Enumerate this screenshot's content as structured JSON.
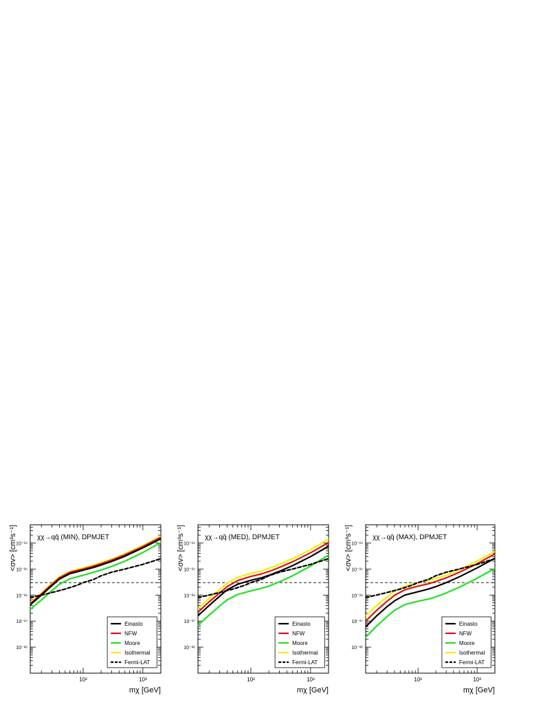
{
  "chart_data": [
    {
      "type": "line",
      "title": "χχ→qq̄ (MIN), DPMJET",
      "xlabel": "mχ [GeV]",
      "ylabel": "<σv> [cm³s⁻¹]",
      "x_scale": "log",
      "y_scale": "log",
      "xlim": [
        13,
        2000
      ],
      "ylim": [
        1e-29,
        5e-24
      ],
      "x_ticks": [
        {
          "value": 100,
          "label": "10²"
        },
        {
          "value": 1000,
          "label": "10³"
        }
      ],
      "y_ticks": [
        {
          "value": 1e-28,
          "label": "10⁻²⁸"
        },
        {
          "value": 1e-27,
          "label": "10⁻²⁷"
        },
        {
          "value": 1e-26,
          "label": "10⁻²⁶"
        },
        {
          "value": 1e-25,
          "label": "10⁻²⁵"
        },
        {
          "value": 1e-24,
          "label": "10⁻²⁴"
        }
      ],
      "reference_line": {
        "y": 3e-26,
        "style": "dashed"
      },
      "legend_position": "bottom-right",
      "grid": false,
      "series": [
        {
          "name": "Isothermal",
          "color": "#f0f000",
          "style": "solid",
          "x": [
            13,
            20,
            30,
            40,
            60,
            100,
            150,
            200,
            300,
            500,
            1000,
            2000
          ],
          "y": [
            5e-27,
            1.2e-26,
            2.8e-26,
            5e-26,
            8e-26,
            1.1e-25,
            1.4e-25,
            1.75e-25,
            2.4e-25,
            3.8e-25,
            8e-25,
            1.8e-24
          ]
        },
        {
          "name": "NFW",
          "color": "#e01010",
          "style": "solid",
          "x": [
            13,
            20,
            30,
            40,
            60,
            100,
            150,
            200,
            300,
            500,
            1000,
            2000
          ],
          "y": [
            4.6e-27,
            1.1e-26,
            2.6e-26,
            4.6e-26,
            7.5e-26,
            1e-25,
            1.3e-25,
            1.6e-25,
            2.2e-25,
            3.5e-25,
            7.3e-25,
            1.65e-24
          ]
        },
        {
          "name": "Einasto",
          "color": "#000000",
          "style": "solid",
          "x": [
            13,
            20,
            30,
            40,
            60,
            100,
            150,
            200,
            300,
            500,
            1000,
            2000
          ],
          "y": [
            4.2e-27,
            1e-26,
            2.3e-26,
            4.1e-26,
            6.6e-26,
            9e-26,
            1.15e-25,
            1.42e-25,
            1.95e-25,
            3.1e-25,
            6.5e-25,
            1.45e-24
          ]
        },
        {
          "name": "Moore",
          "color": "#20e020",
          "style": "solid",
          "x": [
            13,
            20,
            30,
            40,
            60,
            100,
            150,
            200,
            300,
            500,
            1000,
            2000
          ],
          "y": [
            2.8e-27,
            6.5e-27,
            1.5e-26,
            2.6e-26,
            4.2e-26,
            5.8e-26,
            7.5e-26,
            9.2e-26,
            1.25e-25,
            2e-25,
            4.3e-25,
            1.05e-24
          ]
        },
        {
          "name": "Fermi-LAT",
          "color": "#000000",
          "style": "dashed",
          "x": [
            13,
            20,
            30,
            50,
            80,
            100,
            150,
            200,
            300,
            500,
            1000,
            2000
          ],
          "y": [
            8e-27,
            1e-26,
            1.25e-26,
            1.7e-26,
            2.4e-26,
            3e-26,
            4e-26,
            5.5e-26,
            7.5e-26,
            1e-25,
            1.5e-25,
            2.5e-25
          ]
        }
      ]
    },
    {
      "type": "line",
      "title": "χχ→qq̄ (MED), DPMJET",
      "xlabel": "mχ [GeV]",
      "ylabel": "<σv> [cm³s⁻¹]",
      "x_scale": "log",
      "y_scale": "log",
      "xlim": [
        13,
        2000
      ],
      "ylim": [
        1e-29,
        5e-24
      ],
      "x_ticks": [
        {
          "value": 100,
          "label": "10²"
        },
        {
          "value": 1000,
          "label": "10³"
        }
      ],
      "y_ticks": [
        {
          "value": 1e-28,
          "label": "10⁻²⁸"
        },
        {
          "value": 1e-27,
          "label": "10⁻²⁷"
        },
        {
          "value": 1e-26,
          "label": "10⁻²⁶"
        },
        {
          "value": 1e-25,
          "label": "10⁻²⁵"
        },
        {
          "value": 1e-24,
          "label": "10⁻²⁴"
        }
      ],
      "reference_line": {
        "y": 3e-26,
        "style": "dashed"
      },
      "legend_position": "bottom-right",
      "grid": false,
      "series": [
        {
          "name": "Isothermal",
          "color": "#f0f000",
          "style": "solid",
          "x": [
            13,
            20,
            30,
            40,
            60,
            100,
            150,
            200,
            300,
            500,
            1000,
            2000
          ],
          "y": [
            3e-27,
            7.5e-27,
            1.6e-26,
            2.8e-26,
            4.8e-26,
            6.8e-26,
            8.5e-26,
            1.05e-25,
            1.5e-25,
            2.5e-25,
            5.5e-25,
            1.4e-24
          ]
        },
        {
          "name": "NFW",
          "color": "#e01010",
          "style": "solid",
          "x": [
            13,
            20,
            30,
            40,
            60,
            100,
            150,
            200,
            300,
            500,
            1000,
            2000
          ],
          "y": [
            2.2e-27,
            5.5e-27,
            1.2e-26,
            2.1e-26,
            3.6e-26,
            5.2e-26,
            6.5e-26,
            8e-26,
            1.15e-25,
            1.9e-25,
            4.2e-25,
            1.05e-24
          ]
        },
        {
          "name": "Einasto",
          "color": "#000000",
          "style": "solid",
          "x": [
            13,
            20,
            30,
            40,
            60,
            100,
            150,
            200,
            300,
            500,
            1000,
            2000
          ],
          "y": [
            1.6e-27,
            4e-27,
            9e-27,
            1.6e-26,
            2.6e-26,
            3.7e-26,
            4.6e-26,
            5.7e-26,
            8.2e-26,
            1.35e-25,
            3e-25,
            7.5e-25
          ]
        },
        {
          "name": "Moore",
          "color": "#20e020",
          "style": "solid",
          "x": [
            13,
            20,
            30,
            40,
            60,
            100,
            150,
            200,
            300,
            500,
            1000,
            2000
          ],
          "y": [
            7e-28,
            1.7e-27,
            3.8e-27,
            6.5e-27,
            1.05e-26,
            1.45e-26,
            1.8e-26,
            2.2e-26,
            3.2e-26,
            5.5e-26,
            1.3e-25,
            3.4e-25
          ]
        },
        {
          "name": "Fermi-LAT",
          "color": "#000000",
          "style": "dashed",
          "x": [
            13,
            20,
            30,
            50,
            80,
            100,
            150,
            200,
            300,
            500,
            1000,
            2000
          ],
          "y": [
            8e-27,
            1e-26,
            1.25e-26,
            1.7e-26,
            2.4e-26,
            3e-26,
            4e-26,
            5.5e-26,
            7.5e-26,
            1e-25,
            1.5e-25,
            2.5e-25
          ]
        }
      ]
    },
    {
      "type": "line",
      "title": "χχ→qq̄ (MAX), DPMJET",
      "xlabel": "mχ [GeV]",
      "ylabel": "<σv> [cm³s⁻¹]",
      "x_scale": "log",
      "y_scale": "log",
      "xlim": [
        13,
        2000
      ],
      "ylim": [
        1e-29,
        5e-24
      ],
      "x_ticks": [
        {
          "value": 100,
          "label": "10²"
        },
        {
          "value": 1000,
          "label": "10³"
        }
      ],
      "y_ticks": [
        {
          "value": 1e-28,
          "label": "10⁻²⁸"
        },
        {
          "value": 1e-27,
          "label": "10⁻²⁷"
        },
        {
          "value": 1e-26,
          "label": "10⁻²⁶"
        },
        {
          "value": 1e-25,
          "label": "10⁻²⁵"
        },
        {
          "value": 1e-24,
          "label": "10⁻²⁴"
        }
      ],
      "reference_line": {
        "y": 3e-26,
        "style": "dashed"
      },
      "legend_position": "bottom-right",
      "grid": false,
      "series": [
        {
          "name": "Isothermal",
          "color": "#f0f000",
          "style": "solid",
          "x": [
            13,
            20,
            30,
            40,
            60,
            100,
            150,
            200,
            300,
            500,
            1000,
            2000
          ],
          "y": [
            1.6e-27,
            4e-27,
            8.5e-27,
            1.4e-26,
            2.2e-26,
            3e-26,
            3.6e-26,
            4.3e-26,
            5.8e-26,
            9.5e-26,
            2e-25,
            4.7e-25
          ]
        },
        {
          "name": "NFW",
          "color": "#e01010",
          "style": "solid",
          "x": [
            13,
            20,
            30,
            40,
            60,
            100,
            150,
            200,
            300,
            500,
            1000,
            2000
          ],
          "y": [
            1e-27,
            2.6e-27,
            5.8e-27,
            9.8e-27,
            1.6e-26,
            2.2e-26,
            2.7e-26,
            3.3e-26,
            4.6e-26,
            7.5e-26,
            1.6e-25,
            3.8e-25
          ]
        },
        {
          "name": "Einasto",
          "color": "#000000",
          "style": "solid",
          "x": [
            13,
            20,
            30,
            40,
            60,
            100,
            150,
            200,
            300,
            500,
            1000,
            2000
          ],
          "y": [
            6e-28,
            1.6e-27,
            3.6e-27,
            6e-27,
            1e-26,
            1.35e-26,
            1.7e-26,
            2.1e-26,
            3e-26,
            5e-26,
            1.1e-25,
            2.6e-25
          ]
        },
        {
          "name": "Moore",
          "color": "#20e020",
          "style": "solid",
          "x": [
            13,
            20,
            30,
            40,
            60,
            100,
            150,
            200,
            300,
            500,
            1000,
            2000
          ],
          "y": [
            2.4e-28,
            6.5e-28,
            1.5e-27,
            2.6e-27,
            4.3e-27,
            5.8e-27,
            7e-27,
            8.5e-27,
            1.2e-26,
            2e-26,
            4.4e-26,
            1.05e-25
          ]
        },
        {
          "name": "Fermi-LAT",
          "color": "#000000",
          "style": "dashed",
          "x": [
            13,
            20,
            30,
            50,
            80,
            100,
            150,
            200,
            300,
            500,
            1000,
            2000
          ],
          "y": [
            8e-27,
            1e-26,
            1.25e-26,
            1.7e-26,
            2.4e-26,
            3e-26,
            4e-26,
            5.5e-26,
            7.5e-26,
            1e-25,
            1.5e-25,
            2.5e-25
          ]
        }
      ]
    }
  ]
}
